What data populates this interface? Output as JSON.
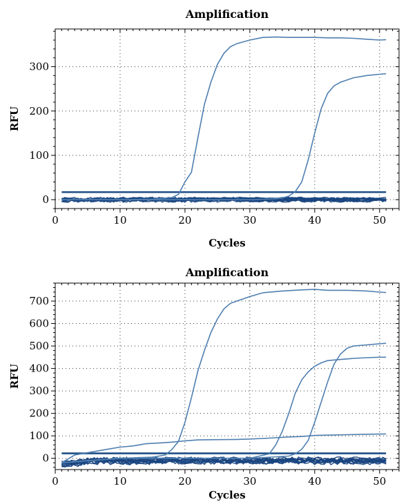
{
  "chart_data": [
    {
      "type": "line",
      "title": "Amplification",
      "xlabel": "Cycles",
      "ylabel": "RFU",
      "xlim": [
        0,
        53
      ],
      "ylim": [
        -20,
        385
      ],
      "xticks": [
        0,
        10,
        20,
        30,
        40,
        50
      ],
      "yticks": [
        0,
        100,
        200,
        300
      ],
      "grid": true,
      "threshold": 17,
      "colors": {
        "curve": "#4f7fb0",
        "threshold": "#1f4e86",
        "baseline": "#1a4580"
      },
      "series": [
        {
          "x": [
            1,
            5,
            10,
            15,
            18,
            19,
            20,
            21,
            22,
            23,
            24,
            25,
            26,
            27,
            28,
            30,
            32,
            34,
            36,
            38,
            40,
            42,
            44,
            46,
            48,
            50,
            51
          ],
          "values": [
            0,
            0,
            0,
            1,
            5,
            12,
            40,
            62,
            140,
            215,
            265,
            305,
            330,
            345,
            352,
            360,
            366,
            367,
            366,
            366,
            366,
            365,
            365,
            364,
            362,
            360,
            361
          ]
        },
        {
          "x": [
            1,
            10,
            20,
            30,
            34,
            35,
            36,
            37,
            38,
            39,
            40,
            41,
            42,
            43,
            44,
            46,
            48,
            50,
            51
          ],
          "values": [
            0,
            0,
            0,
            0,
            2,
            4,
            8,
            18,
            40,
            90,
            150,
            205,
            240,
            257,
            265,
            275,
            280,
            283,
            284
          ]
        }
      ],
      "baseline_band": {
        "ymin": -6,
        "ymax": 6,
        "count": 12
      }
    },
    {
      "type": "line",
      "title": "Amplification",
      "xlabel": "Cycles",
      "ylabel": "RFU",
      "xlim": [
        0,
        53
      ],
      "ylim": [
        -50,
        780
      ],
      "xticks": [
        0,
        10,
        20,
        30,
        40,
        50
      ],
      "yticks": [
        0,
        100,
        200,
        300,
        400,
        500,
        600,
        700
      ],
      "grid": true,
      "threshold": 22,
      "colors": {
        "curve": "#4f7fb0",
        "threshold": "#1f4e86",
        "baseline": "#1a4580"
      },
      "series": [
        {
          "x": [
            1,
            5,
            10,
            15,
            17,
            18,
            19,
            20,
            21,
            22,
            23,
            24,
            25,
            26,
            27,
            28,
            30,
            32,
            35,
            38,
            40,
            42,
            45,
            48,
            50,
            51
          ],
          "values": [
            -20,
            -10,
            0,
            5,
            15,
            40,
            75,
            160,
            270,
            390,
            480,
            560,
            620,
            665,
            690,
            700,
            720,
            737,
            745,
            750,
            752,
            748,
            748,
            745,
            740,
            738
          ]
        },
        {
          "x": [
            1,
            10,
            20,
            30,
            33,
            34,
            35,
            36,
            37,
            38,
            39,
            40,
            41,
            42,
            44,
            46,
            48,
            50,
            51
          ],
          "values": [
            -20,
            0,
            0,
            0,
            20,
            60,
            120,
            200,
            290,
            350,
            385,
            410,
            425,
            435,
            440,
            445,
            448,
            450,
            450
          ]
        },
        {
          "x": [
            1,
            10,
            20,
            30,
            36,
            37,
            38,
            39,
            40,
            41,
            42,
            43,
            44,
            45,
            46,
            48,
            50,
            51
          ],
          "values": [
            -20,
            0,
            0,
            0,
            10,
            20,
            40,
            80,
            160,
            250,
            340,
            420,
            465,
            490,
            500,
            505,
            510,
            512
          ]
        },
        {
          "x": [
            1,
            3,
            5,
            8,
            10,
            12,
            14,
            16,
            18,
            20,
            22,
            25,
            28,
            30,
            33,
            36,
            38,
            40,
            43,
            46,
            48,
            50,
            51
          ],
          "values": [
            -20,
            15,
            25,
            40,
            50,
            55,
            65,
            68,
            72,
            78,
            82,
            83,
            84,
            86,
            90,
            95,
            97,
            102,
            104,
            106,
            107,
            108,
            108
          ]
        }
      ],
      "baseline_band": {
        "ymin": -30,
        "ymax": 8,
        "count": 12
      }
    }
  ]
}
